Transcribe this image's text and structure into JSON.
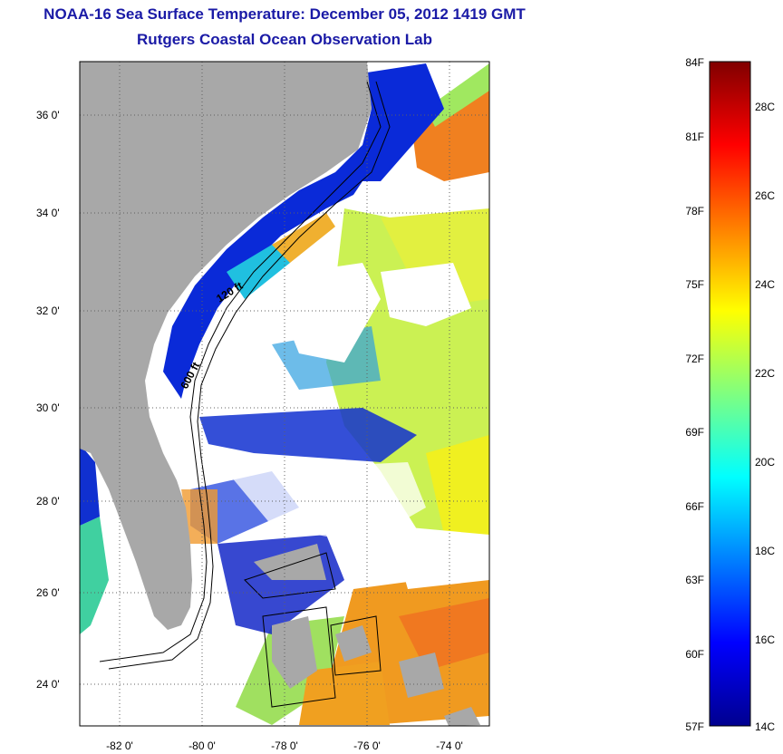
{
  "header": {
    "title": "NOAA-16 Sea Surface Temperature:  December 05, 2012 1419 GMT",
    "subtitle": "Rutgers Coastal Ocean Observation Lab"
  },
  "map": {
    "lat_labels": [
      "36 0'",
      "34 0'",
      "32 0'",
      "30 0'",
      "28 0'",
      "26 0'",
      "24 0'"
    ],
    "lon_labels": [
      "-82 0'",
      "-80 0'",
      "-78 0'",
      "-76 0'",
      "-74 0'"
    ],
    "isobath_labels": [
      "120 ft",
      "600 ft"
    ],
    "colors": {
      "land": "#a8a8a8",
      "cloud": "#ffffff",
      "contour": "#000000"
    }
  },
  "colorbar": {
    "fahrenheit_labels": [
      "84F",
      "81F",
      "78F",
      "75F",
      "72F",
      "69F",
      "66F",
      "63F",
      "60F",
      "57F"
    ],
    "celsius_labels": [
      "28C",
      "26C",
      "24C",
      "22C",
      "20C",
      "18C",
      "16C",
      "14C"
    ],
    "range_c": [
      14,
      29
    ],
    "colormap": "jet"
  }
}
